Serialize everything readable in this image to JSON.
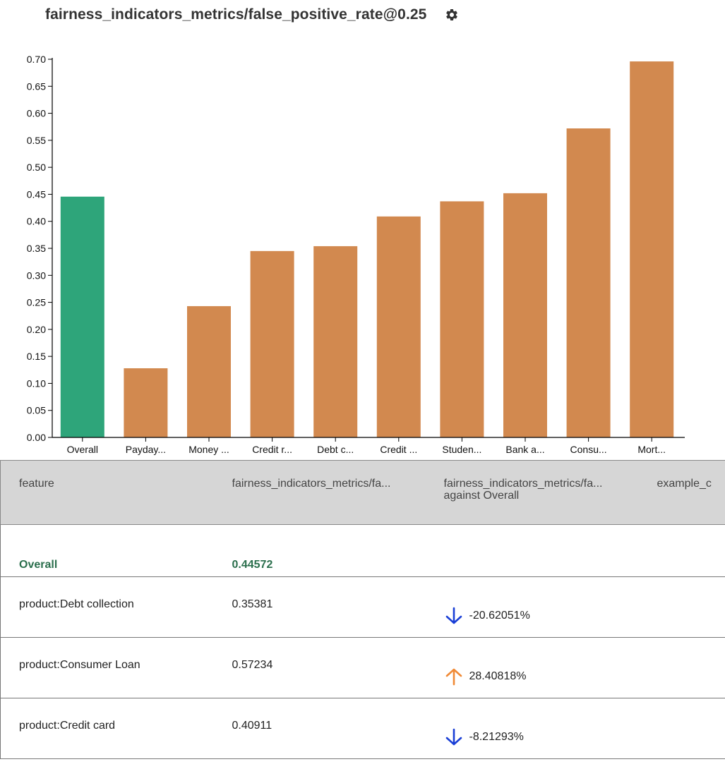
{
  "chart_data": {
    "type": "bar",
    "title": "fairness_indicators_metrics/false_positive_rate@0.25",
    "categories": [
      "Overall",
      "Payday...",
      "Money ...",
      "Credit r...",
      "Debt c...",
      "Credit ...",
      "Studen...",
      "Bank a...",
      "Consu...",
      "Mort..."
    ],
    "values": [
      0.4457,
      0.128,
      0.243,
      0.345,
      0.354,
      0.409,
      0.437,
      0.452,
      0.572,
      0.696
    ],
    "yticks": [
      "0.00",
      "0.05",
      "0.10",
      "0.15",
      "0.20",
      "0.25",
      "0.30",
      "0.35",
      "0.40",
      "0.45",
      "0.50",
      "0.55",
      "0.60",
      "0.65",
      "0.70"
    ],
    "ylim": [
      0,
      0.7
    ],
    "xlabel": "",
    "ylabel": "",
    "grid": false,
    "colors": {
      "overall": "#2ea57a",
      "slice": "#d2894f"
    }
  },
  "header": {
    "gear_icon": "gear-icon"
  },
  "table": {
    "columns": [
      "feature",
      "fairness_indicators_metrics/fa...",
      "fairness_indicators_metrics/fa...",
      "example_c"
    ],
    "column3_sub": "against Overall",
    "rows": [
      {
        "feature": "Overall",
        "value": "0.44572",
        "diff": "",
        "direction": ""
      },
      {
        "feature": "product:Debt collection",
        "value": "0.35381",
        "diff": "-20.62051%",
        "direction": "down"
      },
      {
        "feature": "product:Consumer Loan",
        "value": "0.57234",
        "diff": "28.40818%",
        "direction": "up"
      },
      {
        "feature": "product:Credit card",
        "value": "0.40911",
        "diff": "-8.21293%",
        "direction": "down"
      }
    ],
    "colors": {
      "down": "#1a3fd6",
      "up": "#f08a36",
      "overall_text": "#2b6f4d"
    }
  }
}
